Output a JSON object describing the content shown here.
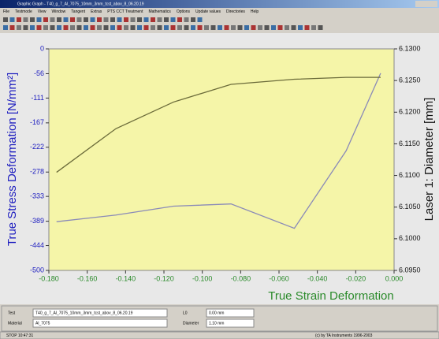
{
  "window": {
    "title": "Graphic Graph - T40_g_7_Al_7075_10mm_3mm_tcst_abov_8_06.20.19",
    "menu": [
      "File",
      "Testmode",
      "View",
      "Window",
      "Tangent",
      "Extras",
      "PTS CCT Treatment",
      "Mathematics",
      "Options",
      "Update values",
      "Directories",
      "Help"
    ]
  },
  "chart_data": {
    "type": "line",
    "y_label": "True Stress Deformation  [N/mm²]",
    "y2_label": "Laser 1: Diameter  [mm]",
    "x_label": "True Strain Deformation",
    "x": [
      -0.176,
      -0.145,
      -0.115,
      -0.085,
      -0.052,
      -0.025,
      -0.007
    ],
    "series": [
      {
        "name": "True Stress Deformation",
        "color": "#8a8ab8",
        "values": [
          -390,
          -375,
          -355,
          -350,
          -405,
          -230,
          -55
        ]
      },
      {
        "name": "Laser 1: Diameter",
        "color": "#6b6b3a",
        "axis": "y2",
        "values": [
          6.1105,
          6.1174,
          6.1216,
          6.1244,
          6.1252,
          6.1255,
          6.1255
        ]
      }
    ],
    "xlim": [
      -0.18,
      0
    ],
    "xticks": [
      {
        "value": -0.18,
        "label": "-0.180"
      },
      {
        "value": -0.16,
        "label": "-0.160"
      },
      {
        "value": -0.14,
        "label": "-0.140"
      },
      {
        "value": -0.12,
        "label": "-0.120"
      },
      {
        "value": -0.1,
        "label": "-0.100"
      },
      {
        "value": -0.08,
        "label": "-0.080"
      },
      {
        "value": -0.06,
        "label": "-0.060"
      },
      {
        "value": -0.04,
        "label": "-0.040"
      },
      {
        "value": -0.02,
        "label": "-0.020"
      },
      {
        "value": 0,
        "label": "0.000"
      }
    ],
    "ylim": [
      -500,
      0
    ],
    "yticks": [
      0,
      -56,
      -111,
      -167,
      -222,
      -278,
      -333,
      -389,
      -444,
      -500
    ],
    "y2lim": [
      6.095,
      6.13
    ],
    "y2ticks": [
      {
        "value": 6.13,
        "label": "6.1300"
      },
      {
        "value": 6.125,
        "label": "6.1250"
      },
      {
        "value": 6.12,
        "label": "6.1200"
      },
      {
        "value": 6.115,
        "label": "6.1150"
      },
      {
        "value": 6.11,
        "label": "6.1100"
      },
      {
        "value": 6.105,
        "label": "6.1050"
      },
      {
        "value": 6.1,
        "label": "6.1000"
      },
      {
        "value": 6.095,
        "label": "6.0950"
      }
    ]
  },
  "info": {
    "test_label": "Test",
    "test": "T40_g_7_Al_7075_10mm_3mm_tcst_abov_8_06.20.19",
    "material_label": "Material",
    "material": "Al_7075",
    "l0_label": "L0",
    "l0": "0.00 mm",
    "diameter_label": "Diameter",
    "diameter": "1.10 mm"
  },
  "status": {
    "left": "STOP 10:47:31",
    "right": "(c) by TA Instruments 1996-2003"
  }
}
